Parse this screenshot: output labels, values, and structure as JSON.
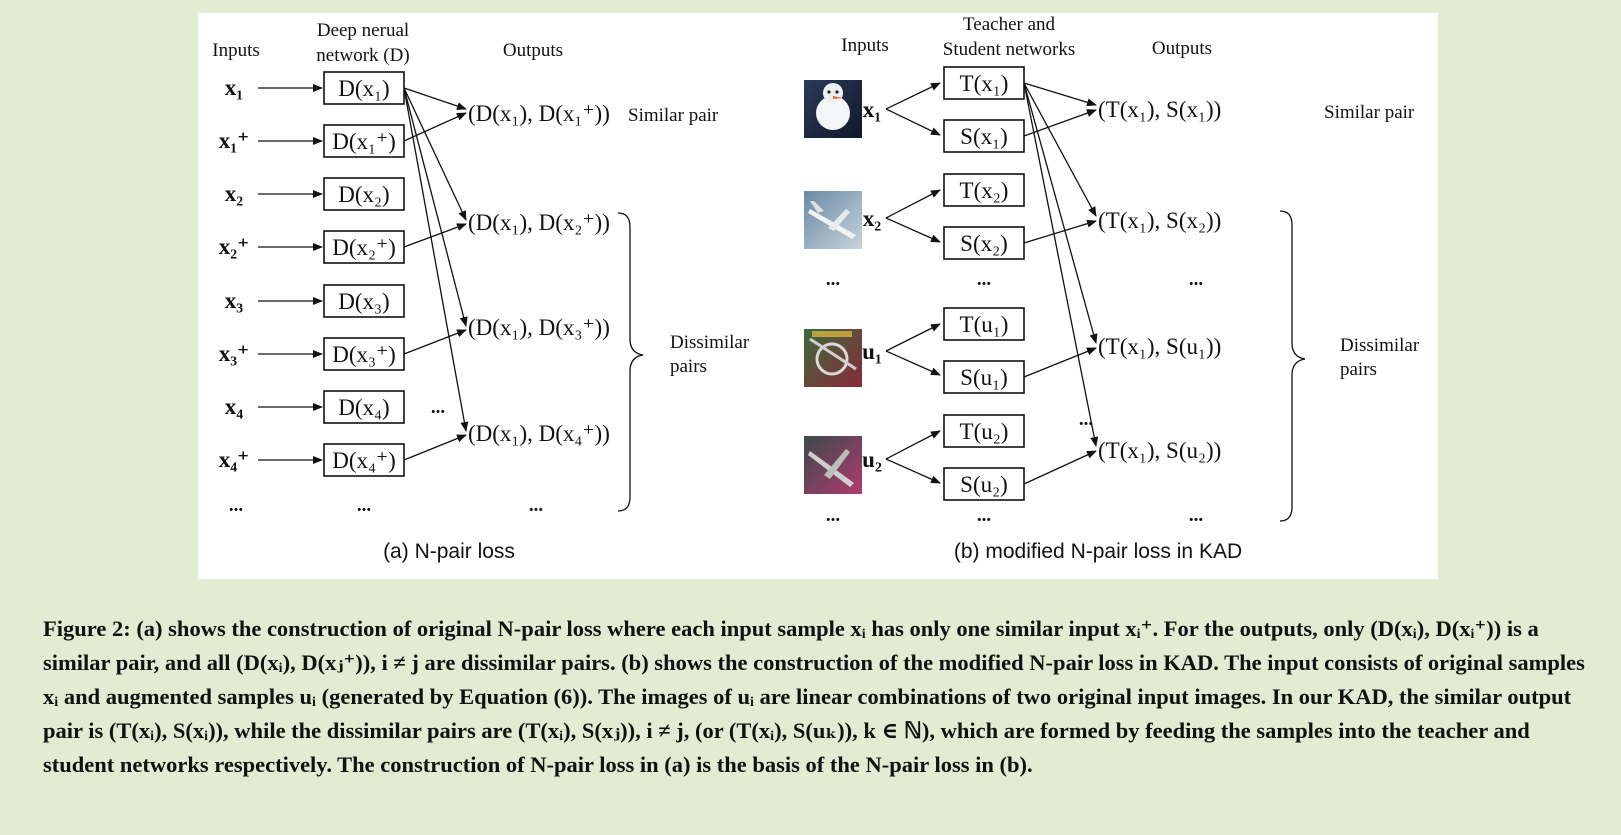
{
  "panel_a": {
    "header_inputs": "Inputs",
    "header_network_line1": "Deep nerual",
    "header_network_line2": "network (D)",
    "header_outputs": "Outputs",
    "rows": [
      {
        "input": "x₁",
        "box": "D(x₁)"
      },
      {
        "input": "x₁⁺",
        "box": "D(x₁⁺)"
      },
      {
        "input": "x₂",
        "box": "D(x₂)"
      },
      {
        "input": "x₂⁺",
        "box": "D(x₂⁺)"
      },
      {
        "input": "x₃",
        "box": "D(x₃)"
      },
      {
        "input": "x₃⁺",
        "box": "D(x₃⁺)"
      },
      {
        "input": "x₄",
        "box": "D(x₄)"
      },
      {
        "input": "x₄⁺",
        "box": "D(x₄⁺)"
      }
    ],
    "outputs": [
      "(D(x₁), D(x₁⁺))",
      "(D(x₁), D(x₂⁺))",
      "(D(x₁), D(x₃⁺))",
      "(D(x₁), D(x₄⁺))"
    ],
    "similar_label": "Similar pair",
    "dissimilar_label_line1": "Dissimilar",
    "dissimilar_label_line2": "pairs",
    "ellipsis": "...",
    "subcaption": "(a) N-pair loss"
  },
  "panel_b": {
    "header_inputs": "Inputs",
    "header_network_line1": "Teacher and",
    "header_network_line2": "Student networks",
    "header_outputs": "Outputs",
    "groups": [
      {
        "input": "x₁",
        "teacher": "T(x₁)",
        "student": "S(x₁)",
        "thumb": "snowman-thumbnail"
      },
      {
        "input": "x₂",
        "teacher": "T(x₂)",
        "student": "S(x₂)",
        "thumb": "airplane-thumbnail"
      },
      {
        "input": "u₁",
        "teacher": "T(u₁)",
        "student": "S(u₁)",
        "thumb": "mixed-image-thumbnail-1"
      },
      {
        "input": "u₂",
        "teacher": "T(u₂)",
        "student": "S(u₂)",
        "thumb": "mixed-image-thumbnail-2"
      }
    ],
    "outputs": [
      "(T(x₁), S(x₁))",
      "(T(x₁), S(x₂))",
      "(T(x₁), S(u₁))",
      "(T(x₁), S(u₂))"
    ],
    "similar_label": "Similar pair",
    "dissimilar_label_line1": "Dissimilar",
    "dissimilar_label_line2": "pairs",
    "ellipsis": "...",
    "subcaption": "(b) modified N-pair loss in KAD"
  },
  "caption": {
    "text": "Figure 2: (a) shows the construction of original N-pair loss where each input sample xᵢ has only one similar input xᵢ⁺. For the outputs, only (D(xᵢ), D(xᵢ⁺)) is a similar pair, and all (D(xᵢ), D(xⱼ⁺)), i ≠ j are dissimilar pairs. (b) shows the construction of the modified N-pair loss in KAD. The input consists of original samples xᵢ and augmented samples uᵢ (generated by Equation (6)). The images of uᵢ are linear combinations of two original input images. In our KAD, the similar output pair is (T(xᵢ), S(xᵢ)), while the dissimilar pairs are (T(xᵢ), S(xⱼ)), i ≠ j, (or (T(xᵢ), S(uₖ)), k ∈ ℕ), which are formed by feeding the samples into the teacher and student networks respectively. The construction of N-pair loss in (a) is the basis of the N-pair loss in (b)."
  }
}
